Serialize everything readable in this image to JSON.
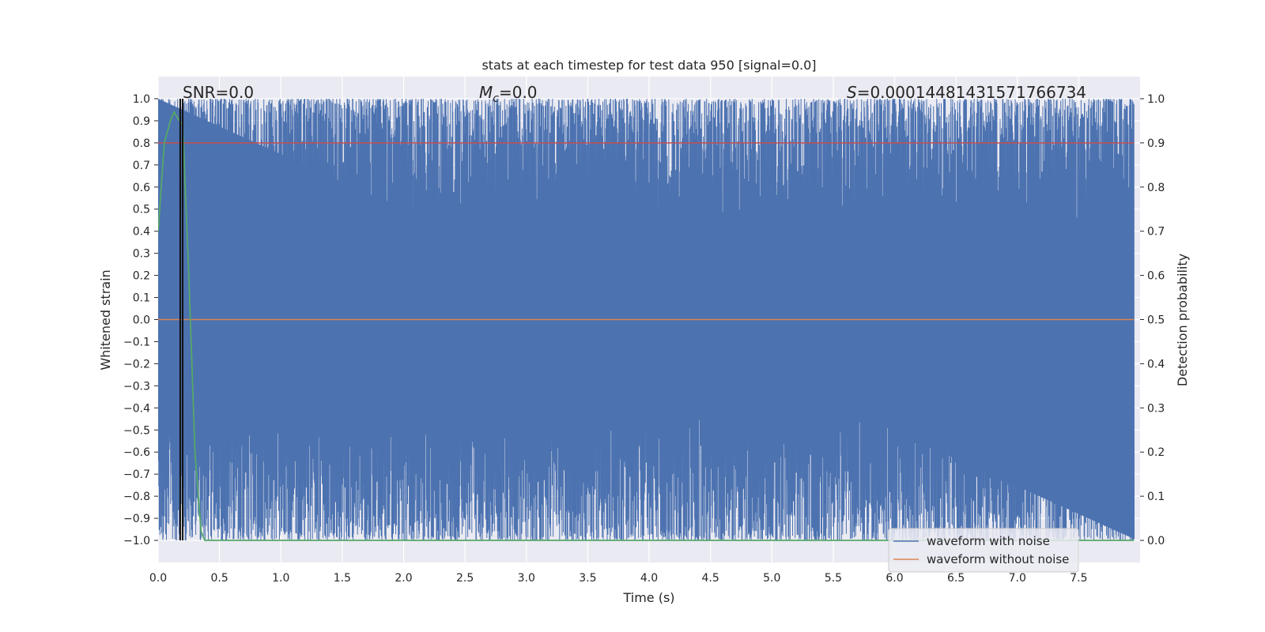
{
  "chart_data": {
    "type": "line",
    "title": "stats at each timestep for test data 950 [signal=0.0]",
    "xlabel": "Time (s)",
    "ylabel": "Whitened strain",
    "y2label": "Detection probability",
    "xlim": [
      0.0,
      8.0
    ],
    "ylim": [
      -1.1,
      1.1
    ],
    "y2lim": [
      -0.05,
      1.05
    ],
    "x_ticks": [
      "0.0",
      "0.5",
      "1.0",
      "1.5",
      "2.0",
      "2.5",
      "3.0",
      "3.5",
      "4.0",
      "4.5",
      "5.0",
      "5.5",
      "6.0",
      "6.5",
      "7.0",
      "7.5"
    ],
    "y_ticks": [
      "1.0",
      "0.9",
      "0.8",
      "0.7",
      "0.6",
      "0.5",
      "0.4",
      "0.3",
      "0.2",
      "0.1",
      "0.0",
      "−0.1",
      "−0.2",
      "−0.3",
      "−0.4",
      "−0.5",
      "−0.6",
      "−0.7",
      "−0.8",
      "−0.9",
      "−1.0"
    ],
    "y2_ticks": [
      "1.0",
      "0.9",
      "0.8",
      "0.7",
      "0.6",
      "0.5",
      "0.4",
      "0.3",
      "0.2",
      "0.1",
      "0.0"
    ],
    "grid": true,
    "legend_placement": "lower-right",
    "annotations": {
      "snr": "SNR=0.0",
      "mc_symbol": "M",
      "mc_sub": "c",
      "mc_value": "=0.0",
      "s_symbol": "S",
      "s_value": "=0.00014481431571766734"
    },
    "series": [
      {
        "name": "waveform with noise",
        "color": "#4c72b0",
        "axis": "left",
        "description_range": [
          -1.0,
          1.0
        ]
      },
      {
        "name": "waveform without noise",
        "color": "#dd8452",
        "axis": "left",
        "constant_value": 0.0
      }
    ],
    "threshold": {
      "axis": "right",
      "value": 0.9,
      "color": "#c44e52"
    },
    "detection_probability": {
      "axis": "right",
      "color": "#55a868",
      "x": [
        0.0,
        0.05,
        0.1,
        0.13,
        0.15,
        0.2,
        0.25,
        0.3,
        0.35,
        0.38,
        0.4,
        8.0
      ],
      "y": [
        0.7,
        0.9,
        0.95,
        0.97,
        0.96,
        0.94,
        0.6,
        0.2,
        0.02,
        0.0,
        0.0,
        0.0
      ]
    },
    "vertical_markers": [
      0.18,
      0.2
    ]
  }
}
